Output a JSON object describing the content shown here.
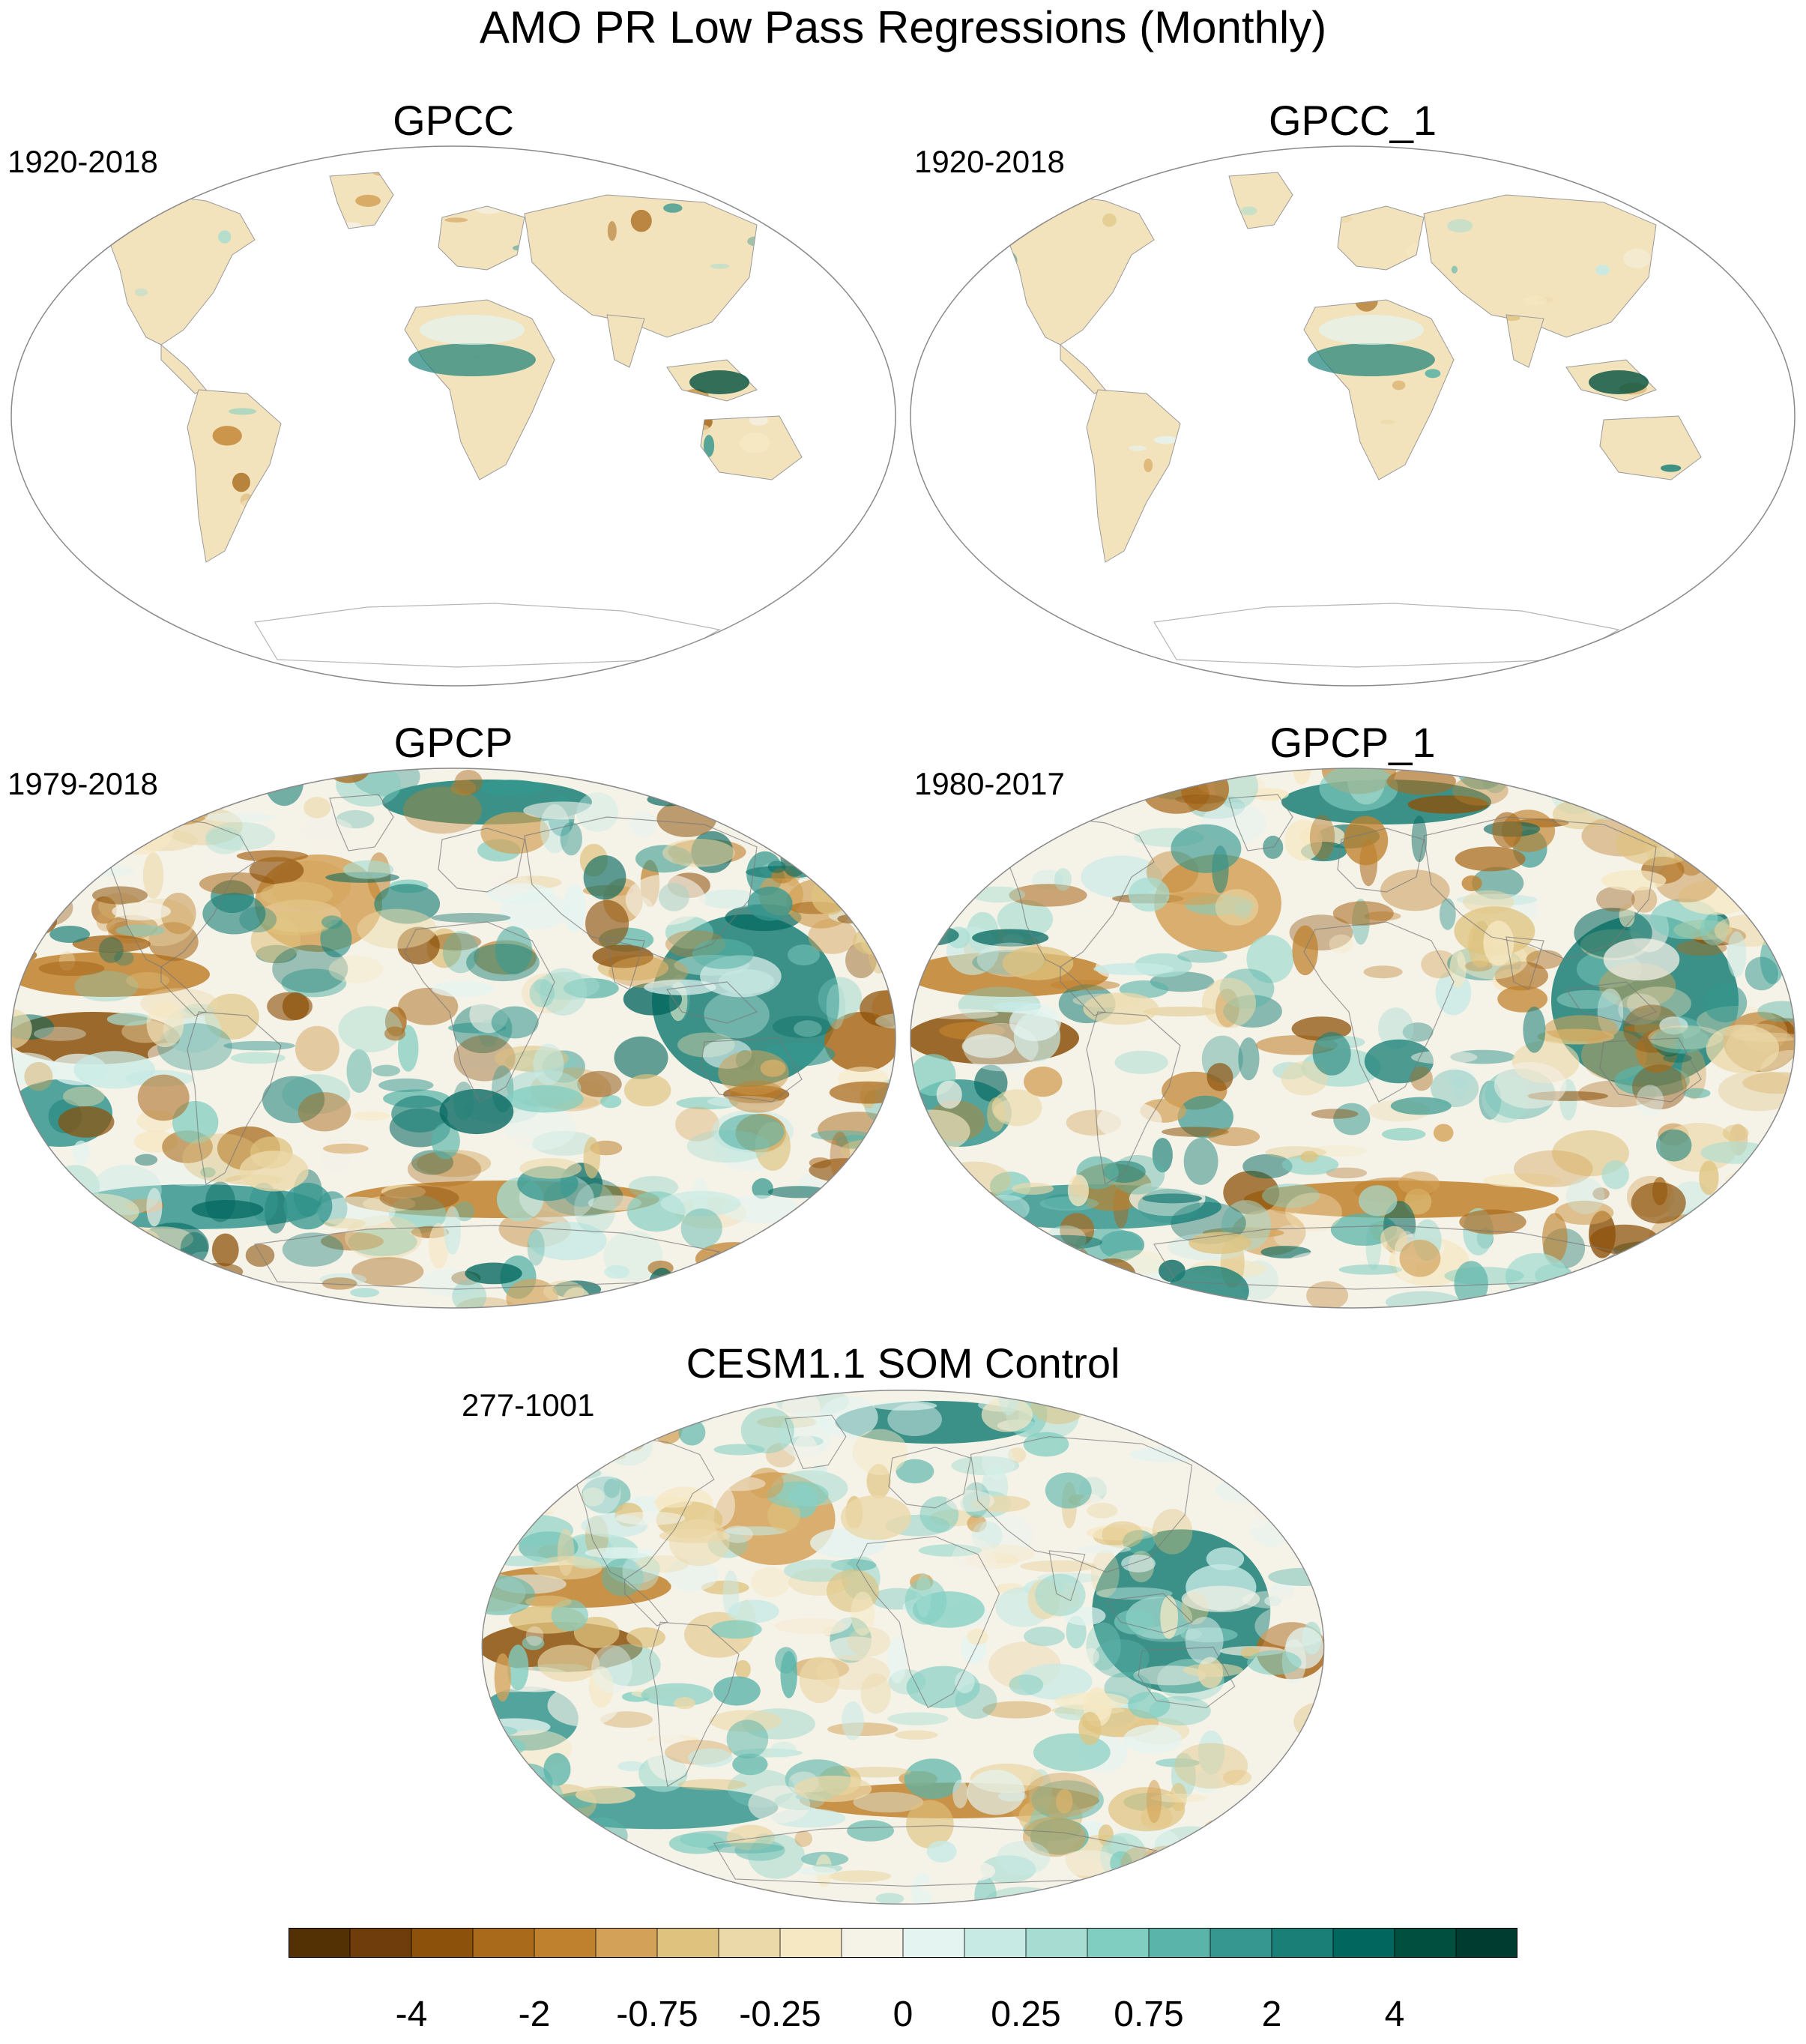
{
  "title": "AMO PR Low Pass Regressions (Monthly)",
  "panels": [
    {
      "title": "GPCC",
      "period": "1920-2018",
      "coverage": "land"
    },
    {
      "title": "GPCC_1",
      "period": "1920-2018",
      "coverage": "land"
    },
    {
      "title": "GPCP",
      "period": "1979-2018",
      "coverage": "global"
    },
    {
      "title": "GPCP_1",
      "period": "1980-2017",
      "coverage": "global"
    },
    {
      "title": "CESM1.1 SOM Control",
      "period": "277-1001",
      "coverage": "global"
    }
  ],
  "colorbar": {
    "colors": [
      "#543005",
      "#6e3d0b",
      "#8c510a",
      "#a96a1c",
      "#bf812d",
      "#d3a258",
      "#dfc27d",
      "#ecd9a9",
      "#f6e8c3",
      "#f5f2e8",
      "#e4f4f1",
      "#c7eae5",
      "#a6dcd1",
      "#80cdc1",
      "#5ab4a9",
      "#35978f",
      "#1a8077",
      "#01665e",
      "#01503f",
      "#003c30"
    ],
    "tick_labels": [
      "-4",
      "-2",
      "-0.75",
      "-0.25",
      "0",
      "0.25",
      "0.75",
      "2",
      "4"
    ]
  }
}
